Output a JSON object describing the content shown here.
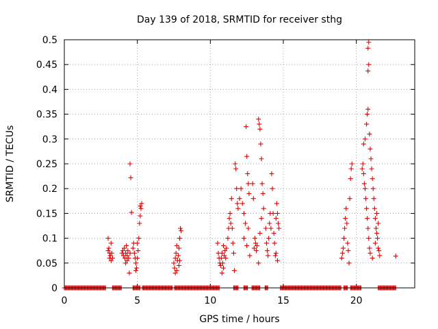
{
  "chart_data": {
    "type": "scatter",
    "title": "Day 139 of 2018, SRMTID for receiver sthg",
    "xlabel": "GPS time / hours",
    "ylabel": "SRMTID / TECUs",
    "xlim": [
      0,
      24
    ],
    "ylim": [
      0,
      0.5
    ],
    "xticks": [
      0,
      5,
      10,
      15,
      20
    ],
    "yticks": [
      0,
      0.05,
      0.1,
      0.15,
      0.2,
      0.25,
      0.3,
      0.35,
      0.4,
      0.45,
      0.5
    ],
    "xtick_labels": [
      "0",
      "5",
      "10",
      "15",
      "20"
    ],
    "ytick_labels": [
      "0",
      "0.05",
      "0.1",
      "0.15",
      "0.2",
      "0.25",
      "0.3",
      "0.35",
      "0.4",
      "0.45",
      "0.5"
    ],
    "grid": true,
    "marker": "+",
    "color": "#e00000",
    "series": [
      {
        "name": "SRMTID",
        "points": [
          [
            3.0,
            0.1
          ],
          [
            3.05,
            0.08
          ],
          [
            3.1,
            0.07
          ],
          [
            3.1,
            0.06
          ],
          [
            3.15,
            0.065
          ],
          [
            3.2,
            0.055
          ],
          [
            3.25,
            0.07
          ],
          [
            3.3,
            0.06
          ],
          [
            3.0,
            0.075
          ],
          [
            3.2,
            0.09
          ],
          [
            3.95,
            0.07
          ],
          [
            4.0,
            0.075
          ],
          [
            4.05,
            0.065
          ],
          [
            4.1,
            0.08
          ],
          [
            4.15,
            0.06
          ],
          [
            4.2,
            0.07
          ],
          [
            4.25,
            0.085
          ],
          [
            4.3,
            0.065
          ],
          [
            4.35,
            0.075
          ],
          [
            4.4,
            0.06
          ],
          [
            4.2,
            0.05
          ],
          [
            4.3,
            0.055
          ],
          [
            4.45,
            0.03
          ],
          [
            4.5,
            0.07
          ],
          [
            4.5,
            0.25
          ],
          [
            4.55,
            0.222
          ],
          [
            4.6,
            0.152
          ],
          [
            4.7,
            0.08
          ],
          [
            4.75,
            0.09
          ],
          [
            4.8,
            0.07
          ],
          [
            4.85,
            0.06
          ],
          [
            4.9,
            0.05
          ],
          [
            4.95,
            0.04
          ],
          [
            5.0,
            0.06
          ],
          [
            5.05,
            0.075
          ],
          [
            5.1,
            0.1
          ],
          [
            5.15,
            0.13
          ],
          [
            5.2,
            0.165
          ],
          [
            5.25,
            0.16
          ],
          [
            5.3,
            0.17
          ],
          [
            5.2,
            0.145
          ],
          [
            5.0,
            0.09
          ],
          [
            4.9,
            0.035
          ],
          [
            7.5,
            0.05
          ],
          [
            7.55,
            0.04
          ],
          [
            7.6,
            0.06
          ],
          [
            7.65,
            0.07
          ],
          [
            7.7,
            0.035
          ],
          [
            7.75,
            0.055
          ],
          [
            7.8,
            0.065
          ],
          [
            7.85,
            0.08
          ],
          [
            7.9,
            0.1
          ],
          [
            7.95,
            0.12
          ],
          [
            8.0,
            0.115
          ],
          [
            7.85,
            0.045
          ],
          [
            7.6,
            0.03
          ],
          [
            7.7,
            0.085
          ],
          [
            7.9,
            0.055
          ],
          [
            10.5,
            0.09
          ],
          [
            10.55,
            0.07
          ],
          [
            10.6,
            0.06
          ],
          [
            10.65,
            0.05
          ],
          [
            10.7,
            0.045
          ],
          [
            10.75,
            0.06
          ],
          [
            10.8,
            0.07
          ],
          [
            10.85,
            0.05
          ],
          [
            10.9,
            0.04
          ],
          [
            10.95,
            0.065
          ],
          [
            11.0,
            0.075
          ],
          [
            11.05,
            0.06
          ],
          [
            11.1,
            0.08
          ],
          [
            10.8,
            0.03
          ],
          [
            10.9,
            0.085
          ],
          [
            11.2,
            0.1
          ],
          [
            11.25,
            0.12
          ],
          [
            11.3,
            0.14
          ],
          [
            11.35,
            0.15
          ],
          [
            11.4,
            0.13
          ],
          [
            11.45,
            0.18
          ],
          [
            11.5,
            0.12
          ],
          [
            11.55,
            0.09
          ],
          [
            11.6,
            0.07
          ],
          [
            11.65,
            0.035
          ],
          [
            11.7,
            0.25
          ],
          [
            11.75,
            0.24
          ],
          [
            11.8,
            0.2
          ],
          [
            11.85,
            0.17
          ],
          [
            11.9,
            0.16
          ],
          [
            12.0,
            0.18
          ],
          [
            12.1,
            0.2
          ],
          [
            12.2,
            0.17
          ],
          [
            12.3,
            0.15
          ],
          [
            12.4,
            0.13
          ],
          [
            12.45,
            0.325
          ],
          [
            12.5,
            0.265
          ],
          [
            12.55,
            0.23
          ],
          [
            12.6,
            0.21
          ],
          [
            12.65,
            0.19
          ],
          [
            12.7,
            0.065
          ],
          [
            12.6,
            0.12
          ],
          [
            12.3,
            0.1
          ],
          [
            12.5,
            0.085
          ],
          [
            12.9,
            0.21
          ],
          [
            12.95,
            0.18
          ],
          [
            13.0,
            0.08
          ],
          [
            13.05,
            0.1
          ],
          [
            13.1,
            0.09
          ],
          [
            13.15,
            0.075
          ],
          [
            13.2,
            0.085
          ],
          [
            13.3,
            0.34
          ],
          [
            13.35,
            0.33
          ],
          [
            13.4,
            0.32
          ],
          [
            13.45,
            0.29
          ],
          [
            13.5,
            0.26
          ],
          [
            13.55,
            0.21
          ],
          [
            13.6,
            0.19
          ],
          [
            13.65,
            0.16
          ],
          [
            13.5,
            0.14
          ],
          [
            13.4,
            0.11
          ],
          [
            13.3,
            0.05
          ],
          [
            13.8,
            0.12
          ],
          [
            13.85,
            0.09
          ],
          [
            13.9,
            0.075
          ],
          [
            13.95,
            0.065
          ],
          [
            14.0,
            0.1
          ],
          [
            14.05,
            0.13
          ],
          [
            14.1,
            0.15
          ],
          [
            14.15,
            0.12
          ],
          [
            14.2,
            0.23
          ],
          [
            14.25,
            0.2
          ],
          [
            14.3,
            0.15
          ],
          [
            14.35,
            0.11
          ],
          [
            14.4,
            0.09
          ],
          [
            14.45,
            0.065
          ],
          [
            14.5,
            0.14
          ],
          [
            14.55,
            0.17
          ],
          [
            14.6,
            0.15
          ],
          [
            14.65,
            0.13
          ],
          [
            14.7,
            0.12
          ],
          [
            14.5,
            0.07
          ],
          [
            14.6,
            0.055
          ],
          [
            19.0,
            0.06
          ],
          [
            19.05,
            0.07
          ],
          [
            19.1,
            0.08
          ],
          [
            19.15,
            0.1
          ],
          [
            19.2,
            0.12
          ],
          [
            19.25,
            0.14
          ],
          [
            19.3,
            0.16
          ],
          [
            19.35,
            0.13
          ],
          [
            19.4,
            0.09
          ],
          [
            19.45,
            0.075
          ],
          [
            19.5,
            0.05
          ],
          [
            19.55,
            0.18
          ],
          [
            19.6,
            0.22
          ],
          [
            19.65,
            0.24
          ],
          [
            19.7,
            0.25
          ],
          [
            20.4,
            0.24
          ],
          [
            20.45,
            0.25
          ],
          [
            20.5,
            0.23
          ],
          [
            20.55,
            0.21
          ],
          [
            20.6,
            0.2
          ],
          [
            20.65,
            0.18
          ],
          [
            20.7,
            0.16
          ],
          [
            20.75,
            0.14
          ],
          [
            20.8,
            0.12
          ],
          [
            20.85,
            0.1
          ],
          [
            20.9,
            0.08
          ],
          [
            20.95,
            0.07
          ],
          [
            20.5,
            0.29
          ],
          [
            20.6,
            0.3
          ],
          [
            20.7,
            0.33
          ],
          [
            20.75,
            0.35
          ],
          [
            20.8,
            0.36
          ],
          [
            20.85,
            0.495
          ],
          [
            20.8,
            0.483
          ],
          [
            20.85,
            0.45
          ],
          [
            20.8,
            0.437
          ],
          [
            20.9,
            0.31
          ],
          [
            20.95,
            0.28
          ],
          [
            21.0,
            0.26
          ],
          [
            21.05,
            0.24
          ],
          [
            21.1,
            0.22
          ],
          [
            21.15,
            0.2
          ],
          [
            21.2,
            0.18
          ],
          [
            21.25,
            0.16
          ],
          [
            21.3,
            0.14
          ],
          [
            21.35,
            0.12
          ],
          [
            21.4,
            0.11
          ],
          [
            21.45,
            0.1
          ],
          [
            21.5,
            0.08
          ],
          [
            21.55,
            0.075
          ],
          [
            21.6,
            0.065
          ],
          [
            21.5,
            0.13
          ],
          [
            21.4,
            0.15
          ],
          [
            21.3,
            0.09
          ],
          [
            21.1,
            0.06
          ],
          [
            22.7,
            0.064
          ]
        ]
      }
    ],
    "zero_band": [
      [
        0,
        2.85
      ],
      [
        3.3,
        3.9
      ],
      [
        4.7,
        5.2
      ],
      [
        5.35,
        7.4
      ],
      [
        7.55,
        10.65
      ],
      [
        11.6,
        11.9
      ],
      [
        12.3,
        12.55
      ],
      [
        12.85,
        13.4
      ],
      [
        13.75,
        13.95
      ],
      [
        14.8,
        18.95
      ],
      [
        19.15,
        19.4
      ],
      [
        19.6,
        20.35
      ],
      [
        21.5,
        22.7
      ]
    ]
  }
}
